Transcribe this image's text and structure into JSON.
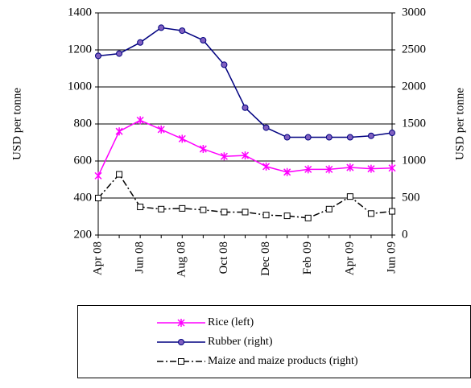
{
  "chart_data": {
    "type": "line",
    "categories": [
      "Apr 08",
      null,
      "Jun 08",
      null,
      "Aug 08",
      null,
      "Oct 08",
      null,
      "Dec 08",
      null,
      "Feb 09",
      null,
      "Apr 09",
      null,
      "Jun 09"
    ],
    "ylabel": "USD per tonne",
    "y2label": "USD per tonne",
    "ylim": [
      200,
      1400
    ],
    "yticks": [
      200,
      400,
      600,
      800,
      1000,
      1200,
      1400
    ],
    "y2lim": [
      0,
      3000
    ],
    "y2ticks": [
      0,
      500,
      1000,
      1500,
      2000,
      2500,
      3000
    ],
    "grid": true,
    "series": [
      {
        "name": "Rice (left)",
        "color": "#ff00ff",
        "marker": "star",
        "dash": false,
        "values": [
          520,
          760,
          820,
          770,
          720,
          665,
          625,
          630,
          570,
          540,
          555,
          555,
          565,
          558,
          562
        ]
      },
      {
        "name": "Rubber (right)",
        "color": "#000080",
        "marker": "circle",
        "dash": false,
        "axis": "y2",
        "values": [
          2420,
          2450,
          2600,
          2800,
          2760,
          2630,
          2300,
          1720,
          1450,
          1320,
          1320,
          1320,
          1320,
          1340,
          1380
        ]
      },
      {
        "name": "Maize and maize products (right)",
        "color": "#000000",
        "marker": "square",
        "dash": true,
        "axis": "y2",
        "values": [
          500,
          820,
          380,
          350,
          360,
          340,
          310,
          310,
          270,
          260,
          230,
          350,
          520,
          290,
          320
        ]
      }
    ]
  }
}
